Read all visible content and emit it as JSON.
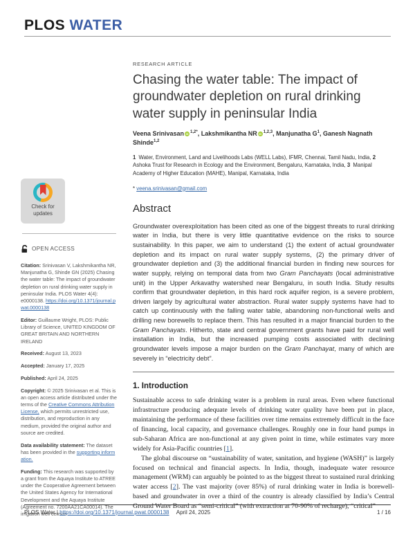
{
  "header": {
    "logo_primary": "PLOS",
    "logo_secondary": "WATER"
  },
  "sidebar": {
    "badge": {
      "line1": "Check for",
      "line2": "updates"
    },
    "open_access_label": "OPEN ACCESS",
    "entries": [
      {
        "label": "Citation:",
        "segments": [
          {
            "t": " Srinivasan V, Lakshmikantha NR, Manjunatha G, Shinde GN (2025) Chasing the water table: The impact of groundwater depletion on rural drinking water supply in peninsular India. PLOS Water 4(4): e0000138. "
          },
          {
            "t": "https://doi.org/10.1371/journal.pwat.0000138",
            "link": true
          }
        ]
      },
      {
        "label": "Editor:",
        "segments": [
          {
            "t": " Guillaume Wright, PLOS: Public Library of Science, UNITED KINGDOM OF GREAT BRITAIN AND NORTHERN IRELAND"
          }
        ]
      },
      {
        "label": "Received:",
        "segments": [
          {
            "t": " August 13, 2023"
          }
        ]
      },
      {
        "label": "Accepted:",
        "segments": [
          {
            "t": " January 17, 2025"
          }
        ]
      },
      {
        "label": "Published:",
        "segments": [
          {
            "t": " April 24, 2025"
          }
        ]
      },
      {
        "label": "Copyright:",
        "segments": [
          {
            "t": " © 2025 Srinivasan et al. This is an open access article distributed under the terms of the "
          },
          {
            "t": "Creative Commons Attribution License,",
            "link": true
          },
          {
            "t": " which permits unrestricted use, distribution, and reproduction in any medium, provided the original author and source are credited."
          }
        ]
      },
      {
        "label": "Data availability statement:",
        "segments": [
          {
            "t": " The dataset has been provided in the "
          },
          {
            "t": "supporting information.",
            "link": true
          }
        ]
      },
      {
        "label": "Funding:",
        "segments": [
          {
            "t": " This research was supported by a grant from the Aquaya Institute to ATREE under the Cooperative Agreement between the United States Agency for International Development and the Aquaya Institute (Agreement no. 7200AA21CA00014). The irrigation well census"
          }
        ]
      }
    ]
  },
  "article": {
    "kicker": "RESEARCH ARTICLE",
    "title": "Chasing the water table: The impact of groundwater depletion on rural drinking water supply in peninsular India",
    "authors": [
      {
        "name": "Veena Srinivasan",
        "orcid": true,
        "sup": "1,2*"
      },
      {
        "name": "Lakshmikantha NR",
        "orcid": true,
        "sup": "1,2,3"
      },
      {
        "name": "Manjunatha G",
        "orcid": false,
        "sup": "1"
      },
      {
        "name": "Ganesh Nagnath Shinde",
        "orcid": false,
        "sup": "1,2"
      }
    ],
    "affiliations": [
      {
        "num": "1",
        "text": "Water, Environment, Land and Livelihoods Labs (WELL Labs), IFMR, Chennai, Tamil Nadu, India, "
      },
      {
        "num": "2",
        "text": "Ashoka Trust for Research in Ecology and the Environment, Bengaluru, Karnataka, India, "
      },
      {
        "num": "3",
        "text": "Manipal Academy of Higher Education (MAHE), Manipal, Karnataka, India"
      }
    ],
    "correspondence_marker": "*",
    "correspondence_email": "veena.srinivasan@gmail.com"
  },
  "abstract": {
    "heading": "Abstract",
    "segments": [
      {
        "t": "Groundwater overexploitation has been cited as one of the biggest threats to rural drinking water in India, but there is very little quantitative evidence on the risks to source sustainability. In this paper, we aim to understand (1) the extent of actual groundwater depletion and its impact on rural water supply systems, (2) the primary driver of groundwater depletion and (3) the additional financial burden in finding new sources for water supply, relying on temporal data from two "
      },
      {
        "t": "Gram Panchayats",
        "italic": true
      },
      {
        "t": " (local administrative unit) in the Upper Arkavathy watershed near Bengaluru, in south India. Study results confirm that groundwater depletion, in this hard rock aquifer region, is a severe problem, driven largely by agricultural water abstraction. Rural water supply systems have had to catch up continuously with the falling water table, abandoning non-functional wells and drilling new borewells to replace them. This has resulted in a major financial burden to the "
      },
      {
        "t": "Gram Panchayats",
        "italic": true
      },
      {
        "t": ". Hitherto, state and central government grants have paid for rural well installation in India, but the increased pumping costs associated with declining groundwater levels impose a major burden on the "
      },
      {
        "t": "Gram Panchayat",
        "italic": true
      },
      {
        "t": ", many of which are severely in “electricity debt”."
      }
    ]
  },
  "introduction": {
    "heading": "1.  Introduction",
    "paragraphs": [
      {
        "indent": false,
        "segments": [
          {
            "t": "Sustainable access to safe drinking water is a problem in rural areas. Even where functional infrastructure producing adequate levels of drinking water quality have been put in place, maintaining the performance of these facilities over time remains extremely difficult in the face of financing, local capacity, and governance challenges. Roughly one in four hand pumps in sub-Saharan Africa are non-functional at any given point in time, while estimates vary more widely for Asia-Pacific countries ["
          },
          {
            "t": "1",
            "link": true
          },
          {
            "t": "]."
          }
        ]
      },
      {
        "indent": true,
        "segments": [
          {
            "t": "The global discourse on “sustainability of water, sanitation, and hygiene (WASH)” is largely focused on technical and financial aspects. In India, though, inadequate water resource management (WRM) can arguably be pointed to as the biggest threat to sustained rural drinking water access ["
          },
          {
            "t": "2",
            "link": true
          },
          {
            "t": "]. The vast majority (over 85%) of rural drinking water in India is borewell-based and groundwater in over a third of the country is already classified by India’s Central Ground Water Board as “semi-critical” (with extraction at 70-90% of recharge), “critical”"
          }
        ]
      }
    ]
  },
  "footer": {
    "journal": "PLOS Water",
    "separator": "|",
    "doi_link": "https://doi.org/10.1371/journal.pwat.0000138",
    "date": "April 24, 2025",
    "page_indicator": "1 / 16"
  },
  "colors": {
    "logo_accent": "#3b5da5",
    "link_blue": "#3568a8",
    "orcid_green": "#a6ce39",
    "crossmark_teal": "#29b6c5",
    "crossmark_yellow": "#f7a823",
    "crossmark_red": "#e03c31"
  }
}
